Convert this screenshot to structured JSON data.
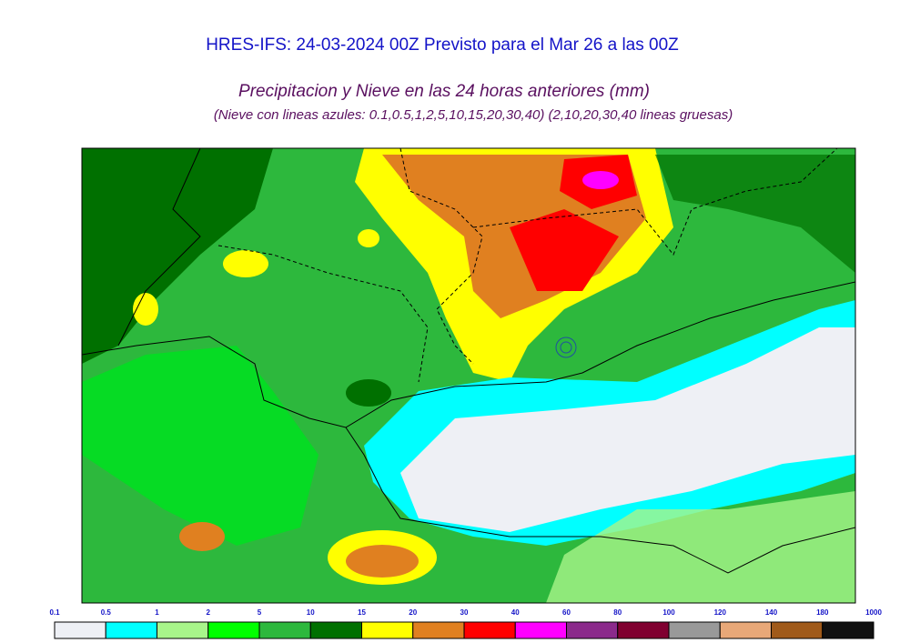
{
  "header": {
    "title": "HRES-IFS: 24-03-2024 00Z Previsto para el Mar 26 a las 00Z",
    "subtitle": "Precipitacion y Nieve en las 24 horas anteriores (mm)",
    "note": "(Nieve con lineas azules: 0.1,0.5,1,2,5,10,15,20,30,40)  (2,10,20,30,40 lineas gruesas)"
  },
  "colorbar": {
    "labels": [
      "0.1",
      "0.5",
      "1",
      "2",
      "5",
      "10",
      "15",
      "20",
      "30",
      "40",
      "60",
      "80",
      "100",
      "120",
      "140",
      "180",
      "1000"
    ],
    "colors": [
      "#eef0f5",
      "#00ffff",
      "#a8f58a",
      "#00ff00",
      "#2db83d",
      "#007000",
      "#ffff00",
      "#e08020",
      "#ff0000",
      "#ff00ff",
      "#8b2a8b",
      "#800030",
      "#999999",
      "#e8a878",
      "#a05a1a",
      "#111111"
    ]
  }
}
